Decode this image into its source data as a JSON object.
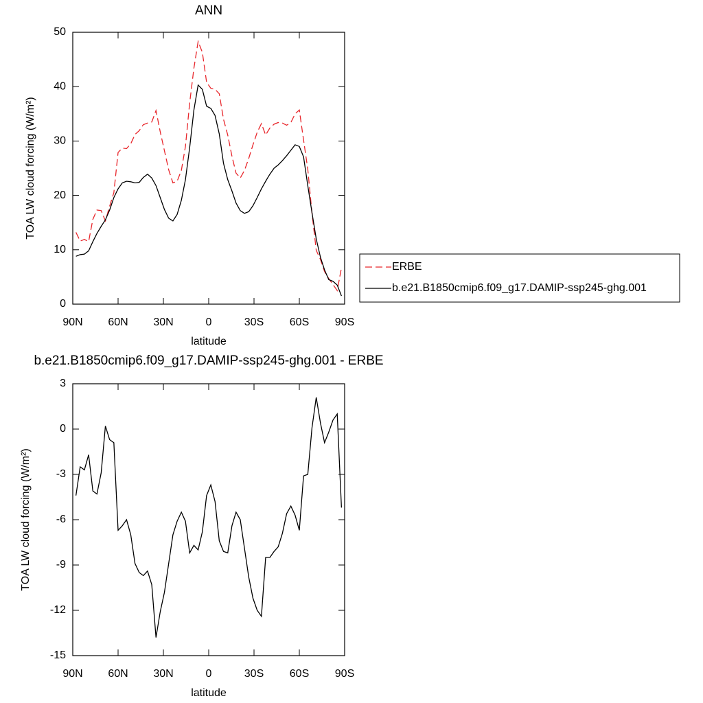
{
  "chart_data": [
    {
      "type": "line",
      "title": "ANN",
      "xlabel": "latitude",
      "ylabel": "TOA LW cloud forcing (W/m²)",
      "x": [
        87.9,
        85.1,
        82.3,
        79.5,
        76.7,
        74.0,
        71.2,
        68.4,
        65.6,
        62.8,
        60.0,
        57.2,
        54.4,
        51.6,
        48.8,
        46.0,
        43.3,
        40.5,
        37.7,
        34.9,
        32.1,
        29.3,
        26.5,
        23.7,
        20.9,
        18.1,
        15.4,
        12.6,
        9.8,
        7.0,
        4.2,
        1.4,
        -1.4,
        -4.2,
        -7.0,
        -9.8,
        -12.6,
        -15.4,
        -18.1,
        -20.9,
        -23.7,
        -26.5,
        -29.3,
        -32.1,
        -34.9,
        -37.7,
        -40.5,
        -43.3,
        -46.0,
        -48.8,
        -51.6,
        -54.4,
        -57.2,
        -60.0,
        -62.8,
        -65.6,
        -68.4,
        -71.2,
        -74.0,
        -76.7,
        -79.5,
        -82.3,
        -85.1,
        -87.9
      ],
      "series": [
        {
          "name": "ERBE",
          "color": "#e8262b",
          "line_style": "dashed",
          "values": [
            13.2,
            11.6,
            11.9,
            11.5,
            15.6,
            17.3,
            17.2,
            15.3,
            18.0,
            20.5,
            27.9,
            28.7,
            28.6,
            29.5,
            31.2,
            31.9,
            33.0,
            33.3,
            33.5,
            35.6,
            31.7,
            28.2,
            24.7,
            22.3,
            22.6,
            24.6,
            29.0,
            37.0,
            43.4,
            48.3,
            46.3,
            40.8,
            39.7,
            39.5,
            38.7,
            34.0,
            31.1,
            27.2,
            24.1,
            23.2,
            24.6,
            26.8,
            29.3,
            31.6,
            33.2,
            31.1,
            32.4,
            33.1,
            33.4,
            33.3,
            32.9,
            33.4,
            35.0,
            35.7,
            30.2,
            24.8,
            16.7,
            9.9,
            8.2,
            6.0,
            4.7,
            3.6,
            2.5,
            6.7
          ]
        },
        {
          "name": "b.e21.B1850cmip6.f09_g17.DAMIP-ssp245-ghg.001",
          "color": "#000000",
          "line_style": "solid",
          "values": [
            8.8,
            9.1,
            9.2,
            9.8,
            11.5,
            13.0,
            14.3,
            15.5,
            17.3,
            19.6,
            21.2,
            22.3,
            22.6,
            22.5,
            22.3,
            22.4,
            23.3,
            23.9,
            23.2,
            21.8,
            19.6,
            17.4,
            15.8,
            15.3,
            16.5,
            19.1,
            22.9,
            28.8,
            35.7,
            40.3,
            39.5,
            36.4,
            36.0,
            34.7,
            31.3,
            25.9,
            22.9,
            20.8,
            18.6,
            17.2,
            16.7,
            17.0,
            18.1,
            19.6,
            21.2,
            22.6,
            23.9,
            25.0,
            25.6,
            26.4,
            27.3,
            28.3,
            29.3,
            29.0,
            27.1,
            21.8,
            16.8,
            12.0,
            8.6,
            6.3,
            4.5,
            4.2,
            3.5,
            1.5
          ]
        }
      ],
      "xlim": [
        90,
        -90
      ],
      "xticks": [
        {
          "value": 90,
          "label": "90N"
        },
        {
          "value": 60,
          "label": "60N"
        },
        {
          "value": 30,
          "label": "30N"
        },
        0,
        {
          "value": -30,
          "label": "30S"
        },
        {
          "value": -60,
          "label": "60S"
        },
        {
          "value": -90,
          "label": "90S"
        }
      ],
      "ylim": [
        0,
        50
      ],
      "yticks": [
        0,
        10,
        20,
        30,
        40,
        50
      ],
      "legend": "right"
    },
    {
      "type": "line",
      "title": "b.e21.B1850cmip6.f09_g17.DAMIP-ssp245-ghg.001 - ERBE",
      "xlabel": "latitude",
      "ylabel": "TOA LW cloud forcing (W/m²)",
      "x": [
        87.9,
        85.1,
        82.3,
        79.5,
        76.7,
        74.0,
        71.2,
        68.4,
        65.6,
        62.8,
        60.0,
        57.2,
        54.4,
        51.6,
        48.8,
        46.0,
        43.3,
        40.5,
        37.7,
        34.9,
        32.1,
        29.3,
        26.5,
        23.7,
        20.9,
        18.1,
        15.4,
        12.6,
        9.8,
        7.0,
        4.2,
        1.4,
        -1.4,
        -4.2,
        -7.0,
        -9.8,
        -12.6,
        -15.4,
        -18.1,
        -20.9,
        -23.7,
        -26.5,
        -29.3,
        -32.1,
        -34.9,
        -37.7,
        -40.5,
        -43.3,
        -46.0,
        -48.8,
        -51.6,
        -54.4,
        -57.2,
        -60.0,
        -62.8,
        -65.6,
        -68.4,
        -71.2,
        -74.0,
        -76.7,
        -79.5,
        -82.3,
        -85.1,
        -87.9
      ],
      "values": [
        -4.4,
        -2.5,
        -2.7,
        -1.7,
        -4.1,
        -4.3,
        -2.9,
        0.2,
        -0.7,
        -0.9,
        -6.7,
        -6.4,
        -6.0,
        -7.0,
        -8.9,
        -9.5,
        -9.7,
        -9.4,
        -10.3,
        -13.8,
        -12.1,
        -10.8,
        -8.9,
        -7.0,
        -6.1,
        -5.5,
        -6.1,
        -8.2,
        -7.7,
        -8.0,
        -6.8,
        -4.4,
        -3.7,
        -4.8,
        -7.4,
        -8.1,
        -8.2,
        -6.4,
        -5.5,
        -6.0,
        -7.9,
        -9.8,
        -11.2,
        -12.0,
        -12.4,
        -8.5,
        -8.5,
        -8.1,
        -7.8,
        -6.9,
        -5.6,
        -5.1,
        -5.7,
        -6.7,
        -3.1,
        -3.0,
        0.1,
        2.1,
        0.4,
        -0.9,
        -0.2,
        0.6,
        1.0,
        -5.2
      ],
      "color": "#000000",
      "line_style": "solid",
      "xlim": [
        90,
        -90
      ],
      "xticks": [
        {
          "value": 90,
          "label": "90N"
        },
        {
          "value": 60,
          "label": "60N"
        },
        {
          "value": 30,
          "label": "30N"
        },
        0,
        {
          "value": -30,
          "label": "30S"
        },
        {
          "value": -60,
          "label": "60S"
        },
        {
          "value": -90,
          "label": "90S"
        }
      ],
      "ylim": [
        -15,
        3
      ],
      "yticks": [
        -15,
        -12,
        -9,
        -6,
        -3,
        0,
        3
      ]
    }
  ]
}
